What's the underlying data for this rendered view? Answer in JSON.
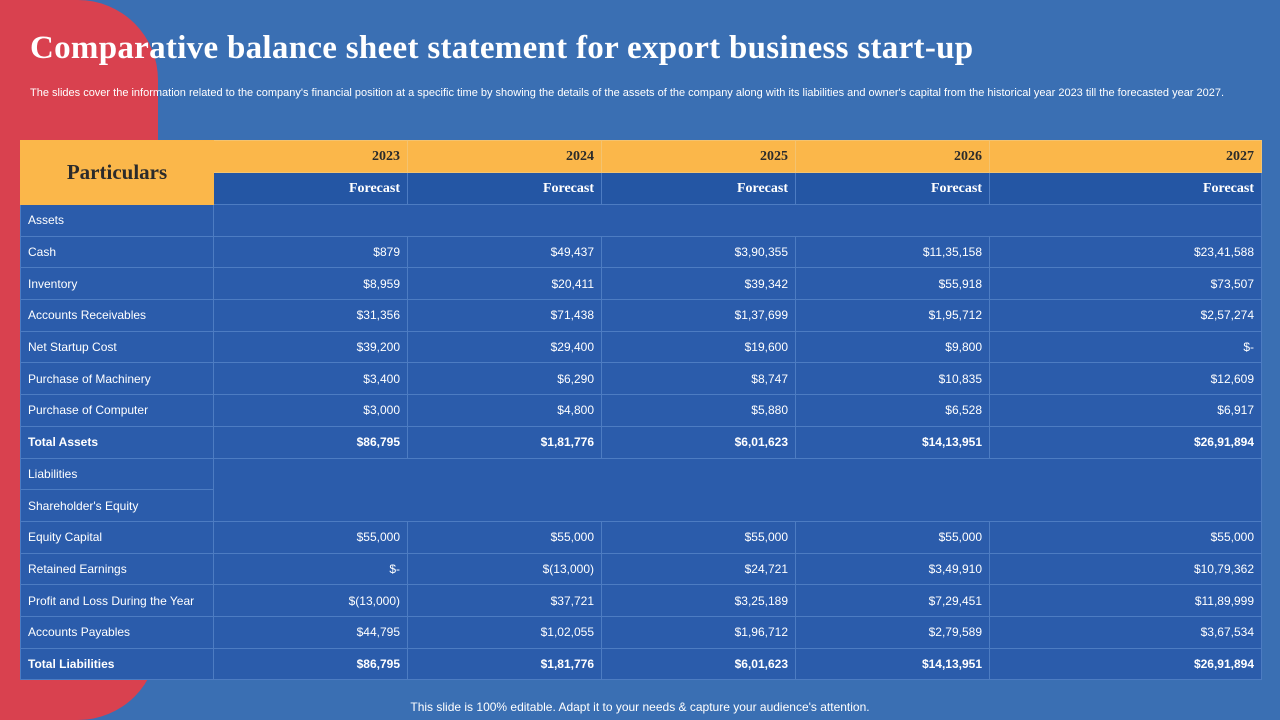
{
  "title": "Comparative balance sheet statement for export business start-up",
  "subtitle": "The slides cover the information related to the company's financial position at a specific time by showing the details of the assets of the company along with its liabilities and owner's capital from the historical year 2023 till the forecasted year 2027.",
  "table": {
    "particulars_label": "Particulars",
    "years": [
      "2023",
      "2024",
      "2025",
      "2026",
      "2027"
    ],
    "forecast_label": "Forecast",
    "rows": [
      {
        "label": "Assets",
        "section": true
      },
      {
        "label": "Cash",
        "values": [
          "$879",
          "$49,437",
          "$3,90,355",
          "$11,35,158",
          "$23,41,588"
        ]
      },
      {
        "label": "Inventory",
        "values": [
          "$8,959",
          "$20,411",
          "$39,342",
          "$55,918",
          "$73,507"
        ]
      },
      {
        "label": "Accounts Receivables",
        "values": [
          "$31,356",
          "$71,438",
          "$1,37,699",
          "$1,95,712",
          "$2,57,274"
        ]
      },
      {
        "label": "Net Startup Cost",
        "values": [
          "$39,200",
          "$29,400",
          "$19,600",
          "$9,800",
          "$-"
        ]
      },
      {
        "label": "Purchase of Machinery",
        "values": [
          "$3,400",
          "$6,290",
          "$8,747",
          "$10,835",
          "$12,609"
        ]
      },
      {
        "label": "Purchase of Computer",
        "values": [
          "$3,000",
          "$4,800",
          "$5,880",
          "$6,528",
          "$6,917"
        ]
      },
      {
        "label": "Total Assets",
        "total": true,
        "values": [
          "$86,795",
          "$1,81,776",
          "$6,01,623",
          "$14,13,951",
          "$26,91,894"
        ]
      },
      {
        "label": "Liabilities",
        "section": true
      },
      {
        "label": "Shareholder's Equity",
        "section": true
      },
      {
        "label": "Equity Capital",
        "values": [
          "$55,000",
          "$55,000",
          "$55,000",
          "$55,000",
          "$55,000"
        ]
      },
      {
        "label": "Retained Earnings",
        "values": [
          "$-",
          "$(13,000)",
          "$24,721",
          "$3,49,910",
          "$10,79,362"
        ]
      },
      {
        "label": "Profit and Loss During the Year",
        "values": [
          "$(13,000)",
          "$37,721",
          "$3,25,189",
          "$7,29,451",
          "$11,89,999"
        ]
      },
      {
        "label": "Accounts Payables",
        "values": [
          "$44,795",
          "$1,02,055",
          "$1,96,712",
          "$2,79,589",
          "$3,67,534"
        ]
      },
      {
        "label": "Total Liabilities",
        "total": true,
        "values": [
          "$86,795",
          "$1,81,776",
          "$6,01,623",
          "$14,13,951",
          "$26,91,894"
        ]
      }
    ]
  },
  "footer": "This slide is 100% editable. Adapt it to your needs & capture your audience's attention.",
  "colors": {
    "background": "#3a6fb3",
    "accent_red": "#d9414f",
    "header_orange": "#fbb74a",
    "cell_blue": "#2b5cab"
  }
}
